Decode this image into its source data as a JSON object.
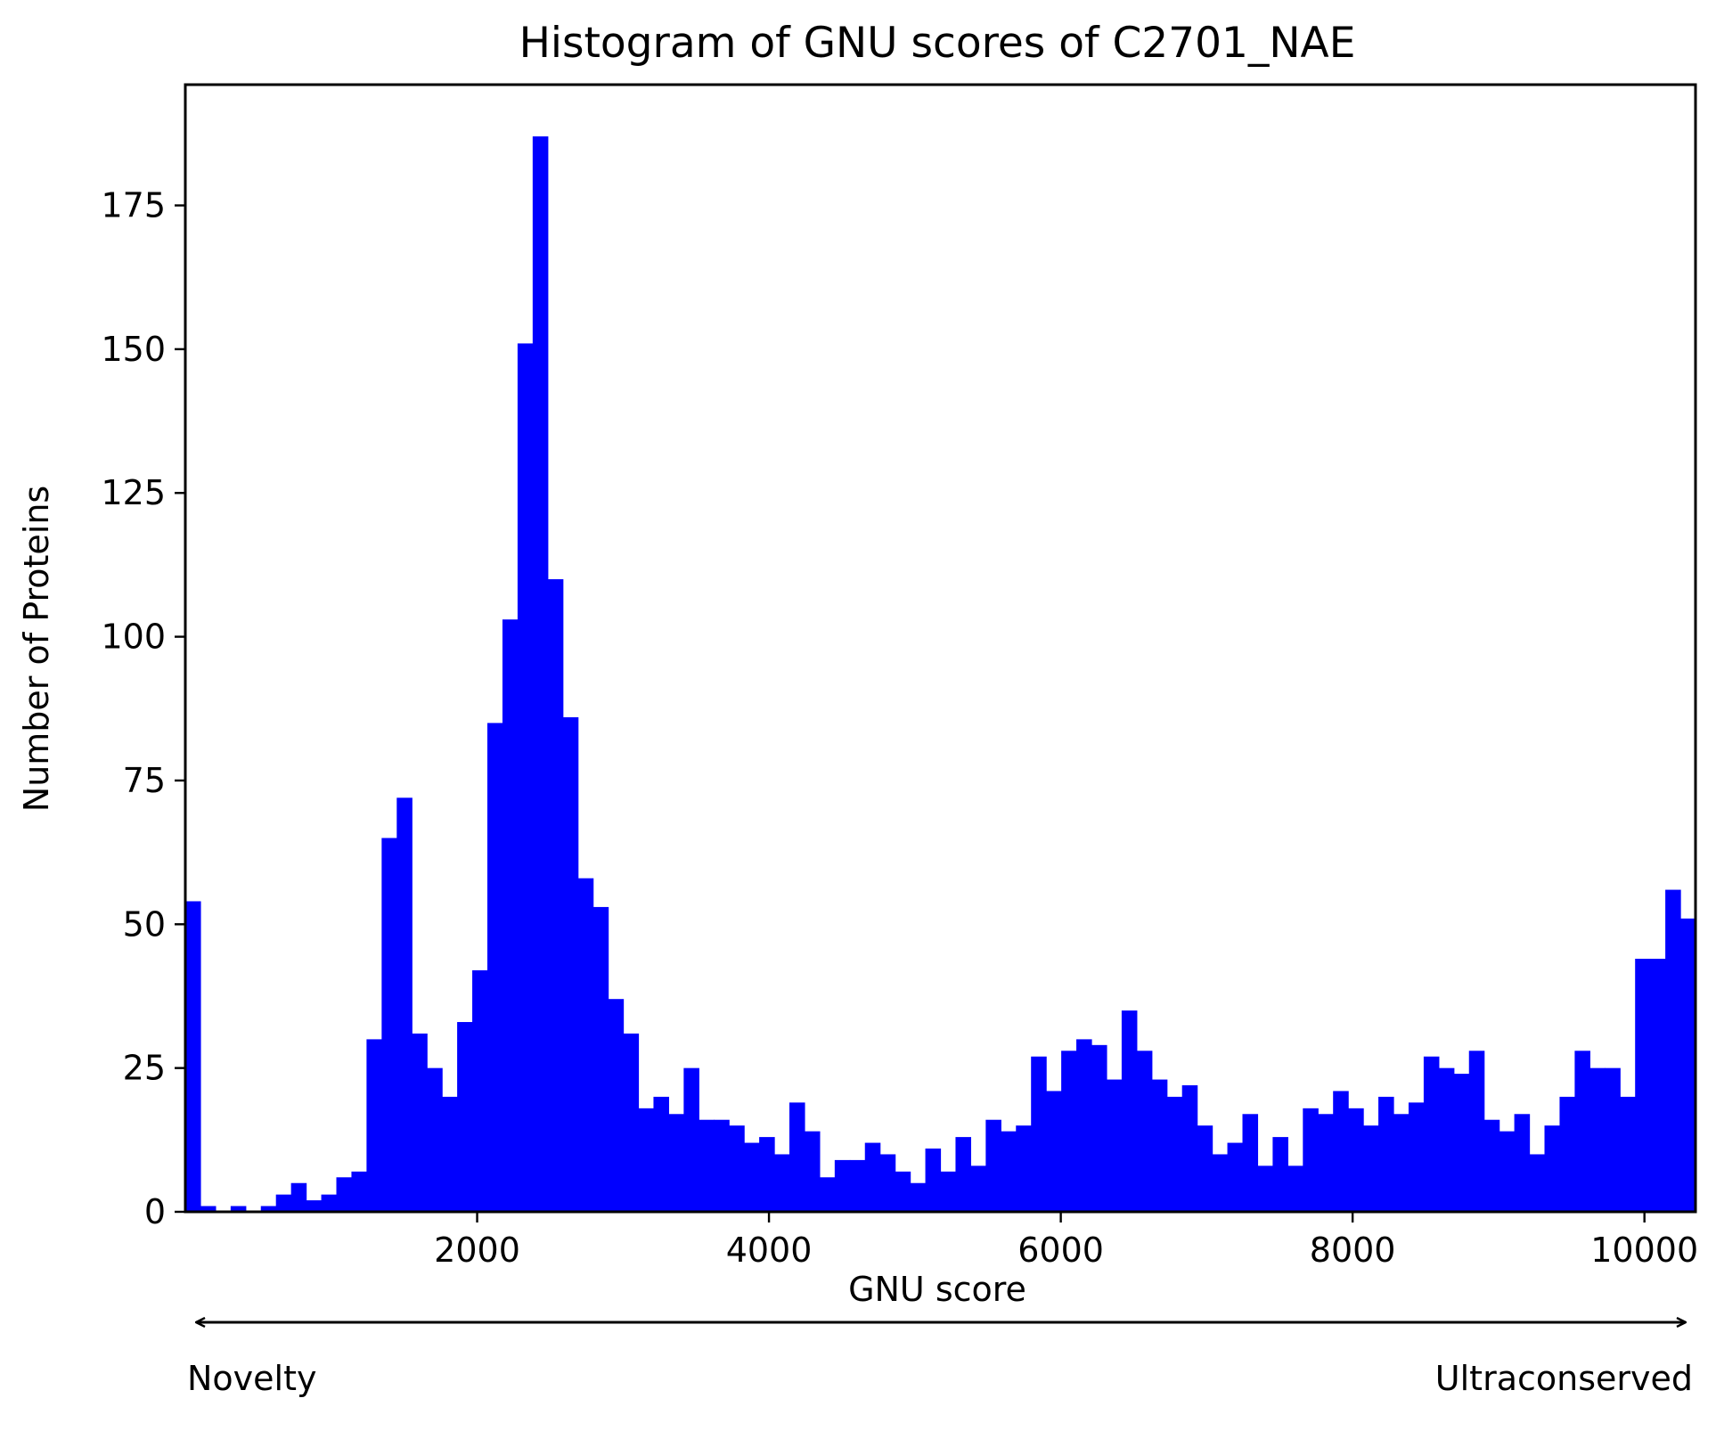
{
  "chart_data": {
    "type": "bar",
    "title": "Histogram of GNU scores of C2701_NAE",
    "xlabel": "GNU score",
    "ylabel": "Number of Proteins",
    "bar_color": "#0000ff",
    "xlim": [
      0,
      10350
    ],
    "ylim": [
      0,
      196
    ],
    "xticks": [
      2000,
      4000,
      6000,
      8000,
      10000
    ],
    "yticks": [
      0,
      25,
      50,
      75,
      100,
      125,
      150,
      175
    ],
    "grid": false,
    "bin_start": 0,
    "bin_width": 103.5,
    "values": [
      54,
      1,
      0,
      1,
      0,
      1,
      3,
      5,
      2,
      3,
      6,
      7,
      30,
      65,
      72,
      31,
      25,
      20,
      33,
      42,
      85,
      103,
      151,
      187,
      110,
      86,
      58,
      53,
      37,
      31,
      18,
      20,
      17,
      25,
      16,
      16,
      15,
      12,
      13,
      10,
      19,
      14,
      6,
      9,
      9,
      12,
      10,
      7,
      5,
      11,
      7,
      13,
      8,
      16,
      14,
      15,
      27,
      21,
      28,
      30,
      29,
      23,
      35,
      28,
      23,
      20,
      22,
      15,
      10,
      12,
      17,
      8,
      13,
      8,
      18,
      17,
      21,
      18,
      15,
      20,
      17,
      19,
      27,
      25,
      24,
      28,
      16,
      14,
      17,
      10,
      15,
      20,
      28,
      25,
      25,
      20,
      44,
      44,
      56,
      51
    ],
    "annotations": {
      "left": "Novelty",
      "right": "Ultraconserved"
    }
  }
}
